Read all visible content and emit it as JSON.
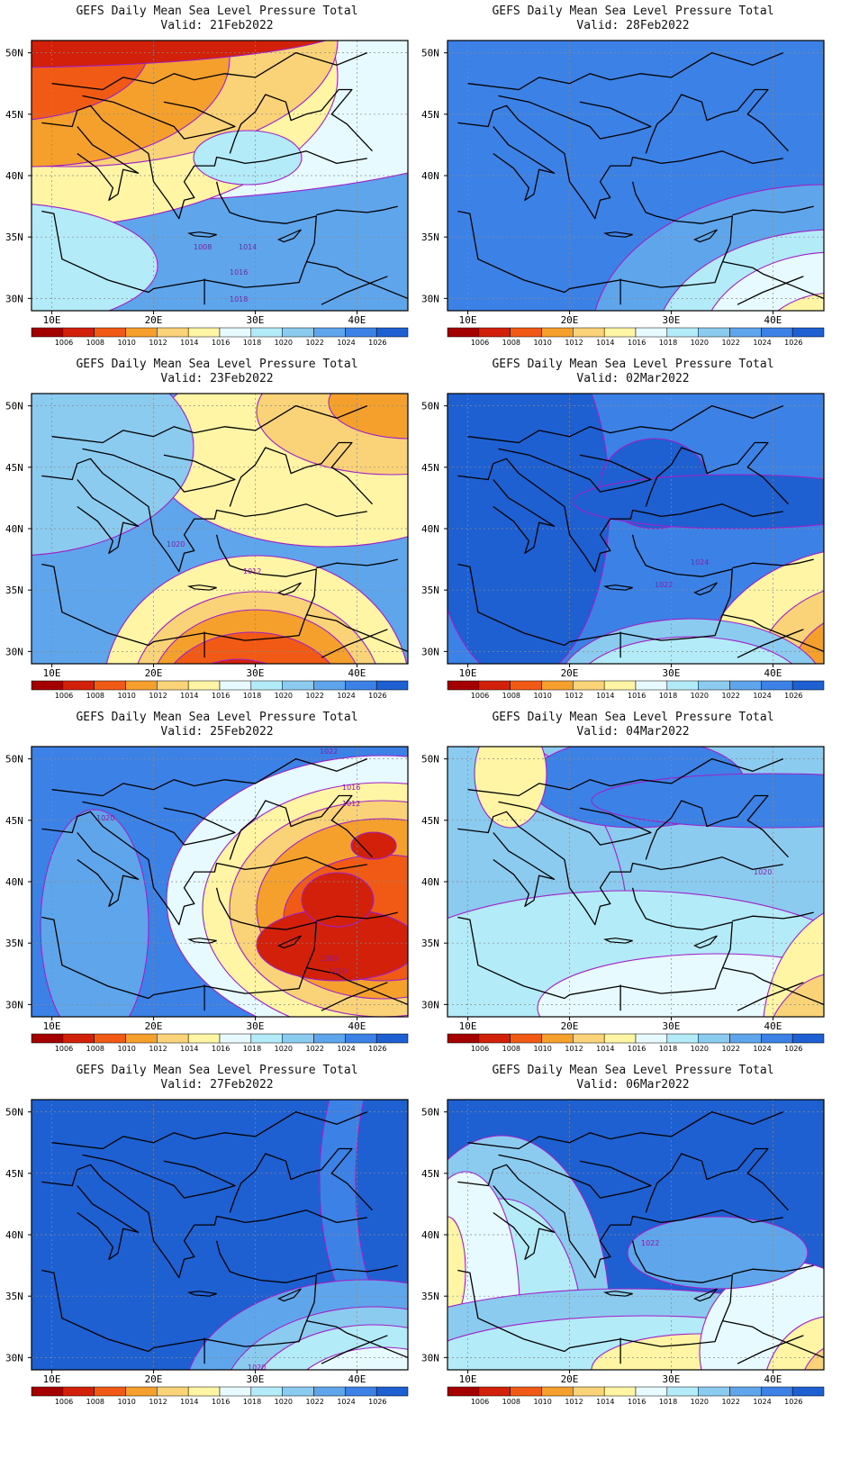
{
  "panels": [
    {
      "title": "GEFS Daily Mean Sea Level Pressure Total",
      "valid": "Valid: 21Feb2022",
      "isobar_labels": [
        "1008",
        "1014",
        "1016",
        "1018"
      ]
    },
    {
      "title": "GEFS Daily Mean Sea Level Pressure Total",
      "valid": "Valid: 28Feb2022",
      "isobar_labels": []
    },
    {
      "title": "GEFS Daily Mean Sea Level Pressure Total",
      "valid": "Valid: 23Feb2022",
      "isobar_labels": [
        "1020",
        "1012",
        "1018",
        "1008"
      ]
    },
    {
      "title": "GEFS Daily Mean Sea Level Pressure Total",
      "valid": "Valid: 02Mar2022",
      "isobar_labels": [
        "1024",
        "1022"
      ]
    },
    {
      "title": "GEFS Daily Mean Sea Level Pressure Total",
      "valid": "Valid: 25Feb2022",
      "isobar_labels": [
        "1022",
        "1016",
        "1012",
        "1020",
        "1008",
        "1010"
      ]
    },
    {
      "title": "GEFS Daily Mean Sea Level Pressure Total",
      "valid": "Valid: 04Mar2022",
      "isobar_labels": [
        "1020"
      ]
    },
    {
      "title": "GEFS Daily Mean Sea Level Pressure Total",
      "valid": "Valid: 27Feb2022",
      "isobar_labels": [
        "1020"
      ]
    },
    {
      "title": "GEFS Daily Mean Sea Level Pressure Total",
      "valid": "Valid: 06Mar2022",
      "isobar_labels": [
        "1022"
      ]
    }
  ],
  "axes": {
    "x_ticks": [
      "10E",
      "20E",
      "30E",
      "40E"
    ],
    "y_ticks": [
      "50N",
      "45N",
      "40N",
      "35N",
      "30N"
    ]
  },
  "colorbar": {
    "levels": [
      "1006",
      "1008",
      "1010",
      "1012",
      "1014",
      "1016",
      "1018",
      "1020",
      "1022",
      "1024",
      "1026"
    ],
    "colors": [
      "#a50000",
      "#d2200a",
      "#f05a14",
      "#f5a02d",
      "#fad278",
      "#fff5a5",
      "#e6faff",
      "#b4ebf8",
      "#8ccbf0",
      "#5fa5eb",
      "#3c82e6",
      "#1e5fd2"
    ]
  }
}
